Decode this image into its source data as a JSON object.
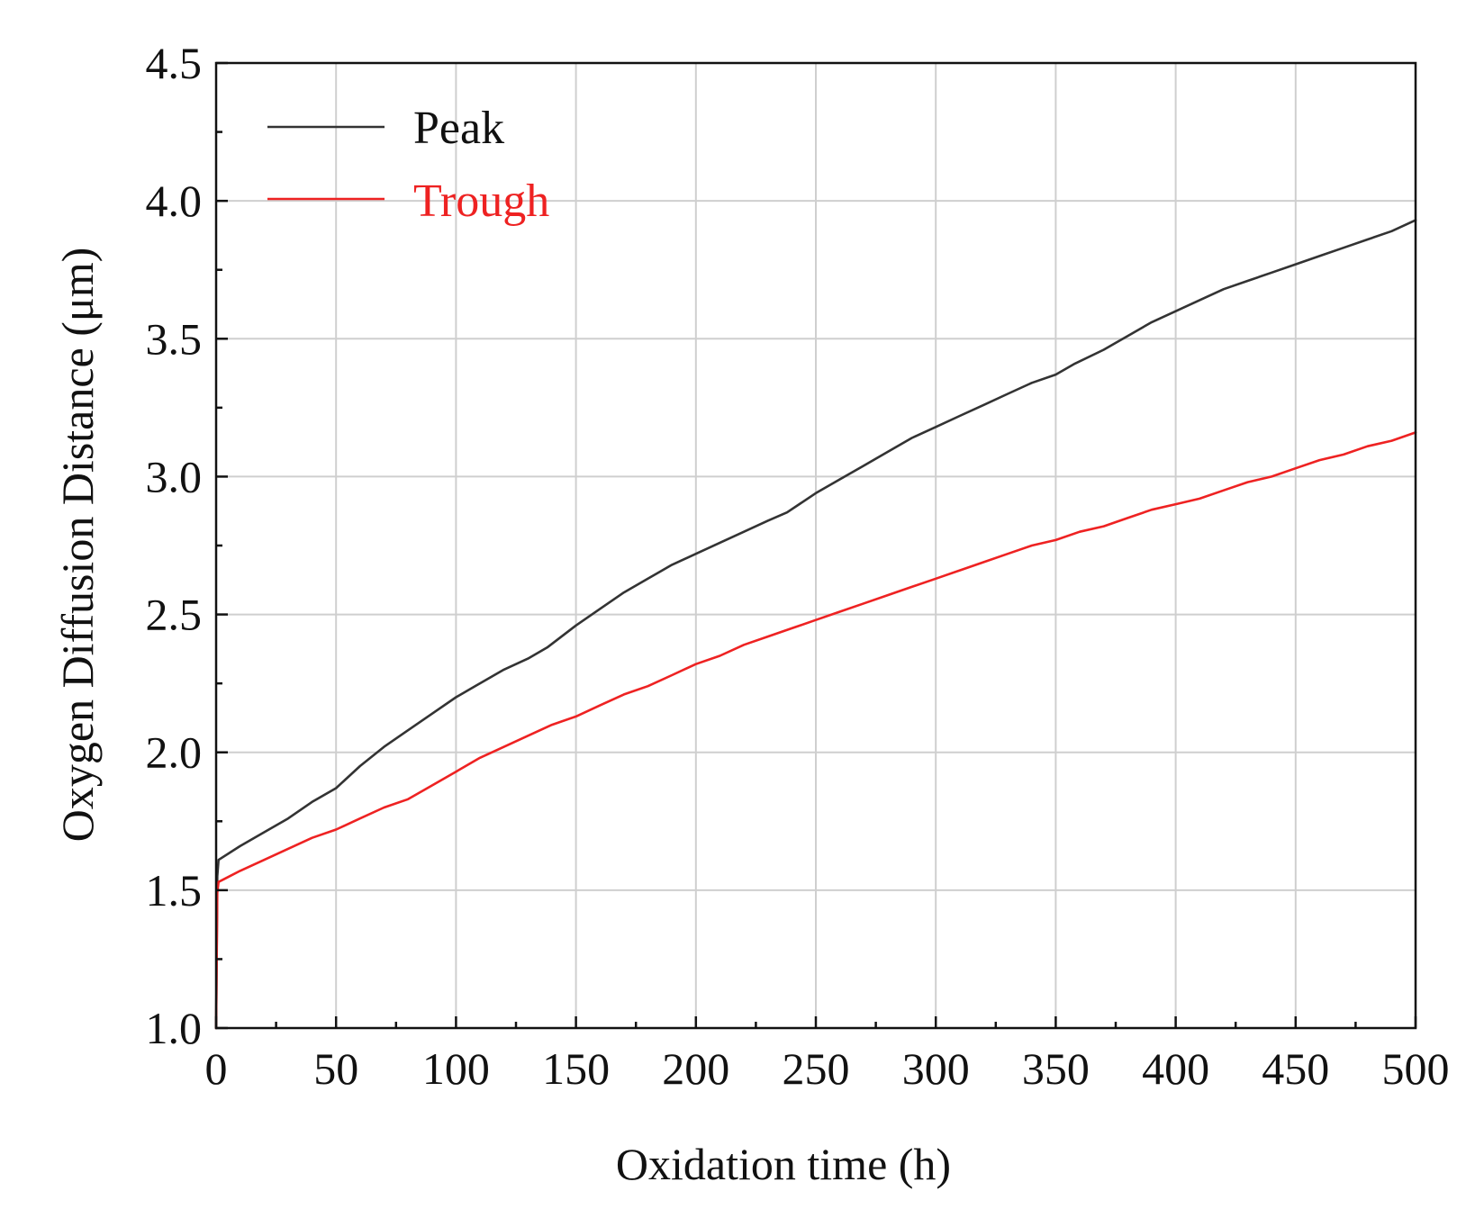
{
  "chart_data": {
    "type": "line",
    "xlabel": "Oxidation time (h)",
    "ylabel": "Oxygen Diffusion Distance  (μm)",
    "xlim": [
      0,
      500
    ],
    "ylim": [
      1.0,
      4.5
    ],
    "xticks": [
      0,
      50,
      100,
      150,
      200,
      250,
      300,
      350,
      400,
      450,
      500
    ],
    "yticks": [
      1.0,
      1.5,
      2.0,
      2.5,
      3.0,
      3.5,
      4.0,
      4.5
    ],
    "xtick_labels": [
      "0",
      "50",
      "100",
      "150",
      "200",
      "250",
      "300",
      "350",
      "400",
      "450",
      "500"
    ],
    "ytick_labels": [
      "1.0",
      "1.5",
      "2.0",
      "2.5",
      "3.0",
      "3.5",
      "4.0",
      "4.5"
    ],
    "grid": true,
    "legend_position": "top-left",
    "series": [
      {
        "name": "Peak",
        "color": "#333333",
        "x": [
          0,
          0.5,
          1,
          10,
          20,
          30,
          40,
          50,
          60,
          70,
          80,
          90,
          100,
          110,
          120,
          130,
          138,
          150,
          160,
          170,
          180,
          190,
          200,
          210,
          220,
          230,
          238,
          250,
          260,
          270,
          280,
          290,
          300,
          310,
          320,
          330,
          340,
          350,
          358,
          370,
          380,
          390,
          400,
          410,
          420,
          430,
          440,
          450,
          460,
          470,
          480,
          490,
          500
        ],
        "y": [
          1.0,
          1.55,
          1.61,
          1.66,
          1.71,
          1.76,
          1.82,
          1.87,
          1.95,
          2.02,
          2.08,
          2.14,
          2.2,
          2.25,
          2.3,
          2.34,
          2.38,
          2.46,
          2.52,
          2.58,
          2.63,
          2.68,
          2.72,
          2.76,
          2.8,
          2.84,
          2.87,
          2.94,
          2.99,
          3.04,
          3.09,
          3.14,
          3.18,
          3.22,
          3.26,
          3.3,
          3.34,
          3.37,
          3.41,
          3.46,
          3.51,
          3.56,
          3.6,
          3.64,
          3.68,
          3.71,
          3.74,
          3.77,
          3.8,
          3.83,
          3.86,
          3.89,
          3.93
        ]
      },
      {
        "name": "Trough",
        "color": "#ee2222",
        "x": [
          0,
          0.5,
          1,
          10,
          20,
          30,
          40,
          50,
          60,
          70,
          80,
          90,
          100,
          110,
          120,
          130,
          140,
          150,
          160,
          170,
          180,
          190,
          200,
          210,
          220,
          230,
          240,
          250,
          260,
          270,
          280,
          290,
          300,
          310,
          320,
          330,
          340,
          350,
          360,
          370,
          380,
          390,
          400,
          410,
          420,
          430,
          440,
          450,
          460,
          470,
          480,
          490,
          500
        ],
        "y": [
          1.0,
          1.49,
          1.53,
          1.57,
          1.61,
          1.65,
          1.69,
          1.72,
          1.76,
          1.8,
          1.83,
          1.88,
          1.93,
          1.98,
          2.02,
          2.06,
          2.1,
          2.13,
          2.17,
          2.21,
          2.24,
          2.28,
          2.32,
          2.35,
          2.39,
          2.42,
          2.45,
          2.48,
          2.51,
          2.54,
          2.57,
          2.6,
          2.63,
          2.66,
          2.69,
          2.72,
          2.75,
          2.77,
          2.8,
          2.82,
          2.85,
          2.88,
          2.9,
          2.92,
          2.95,
          2.98,
          3.0,
          3.03,
          3.06,
          3.08,
          3.11,
          3.13,
          3.16
        ]
      }
    ]
  }
}
